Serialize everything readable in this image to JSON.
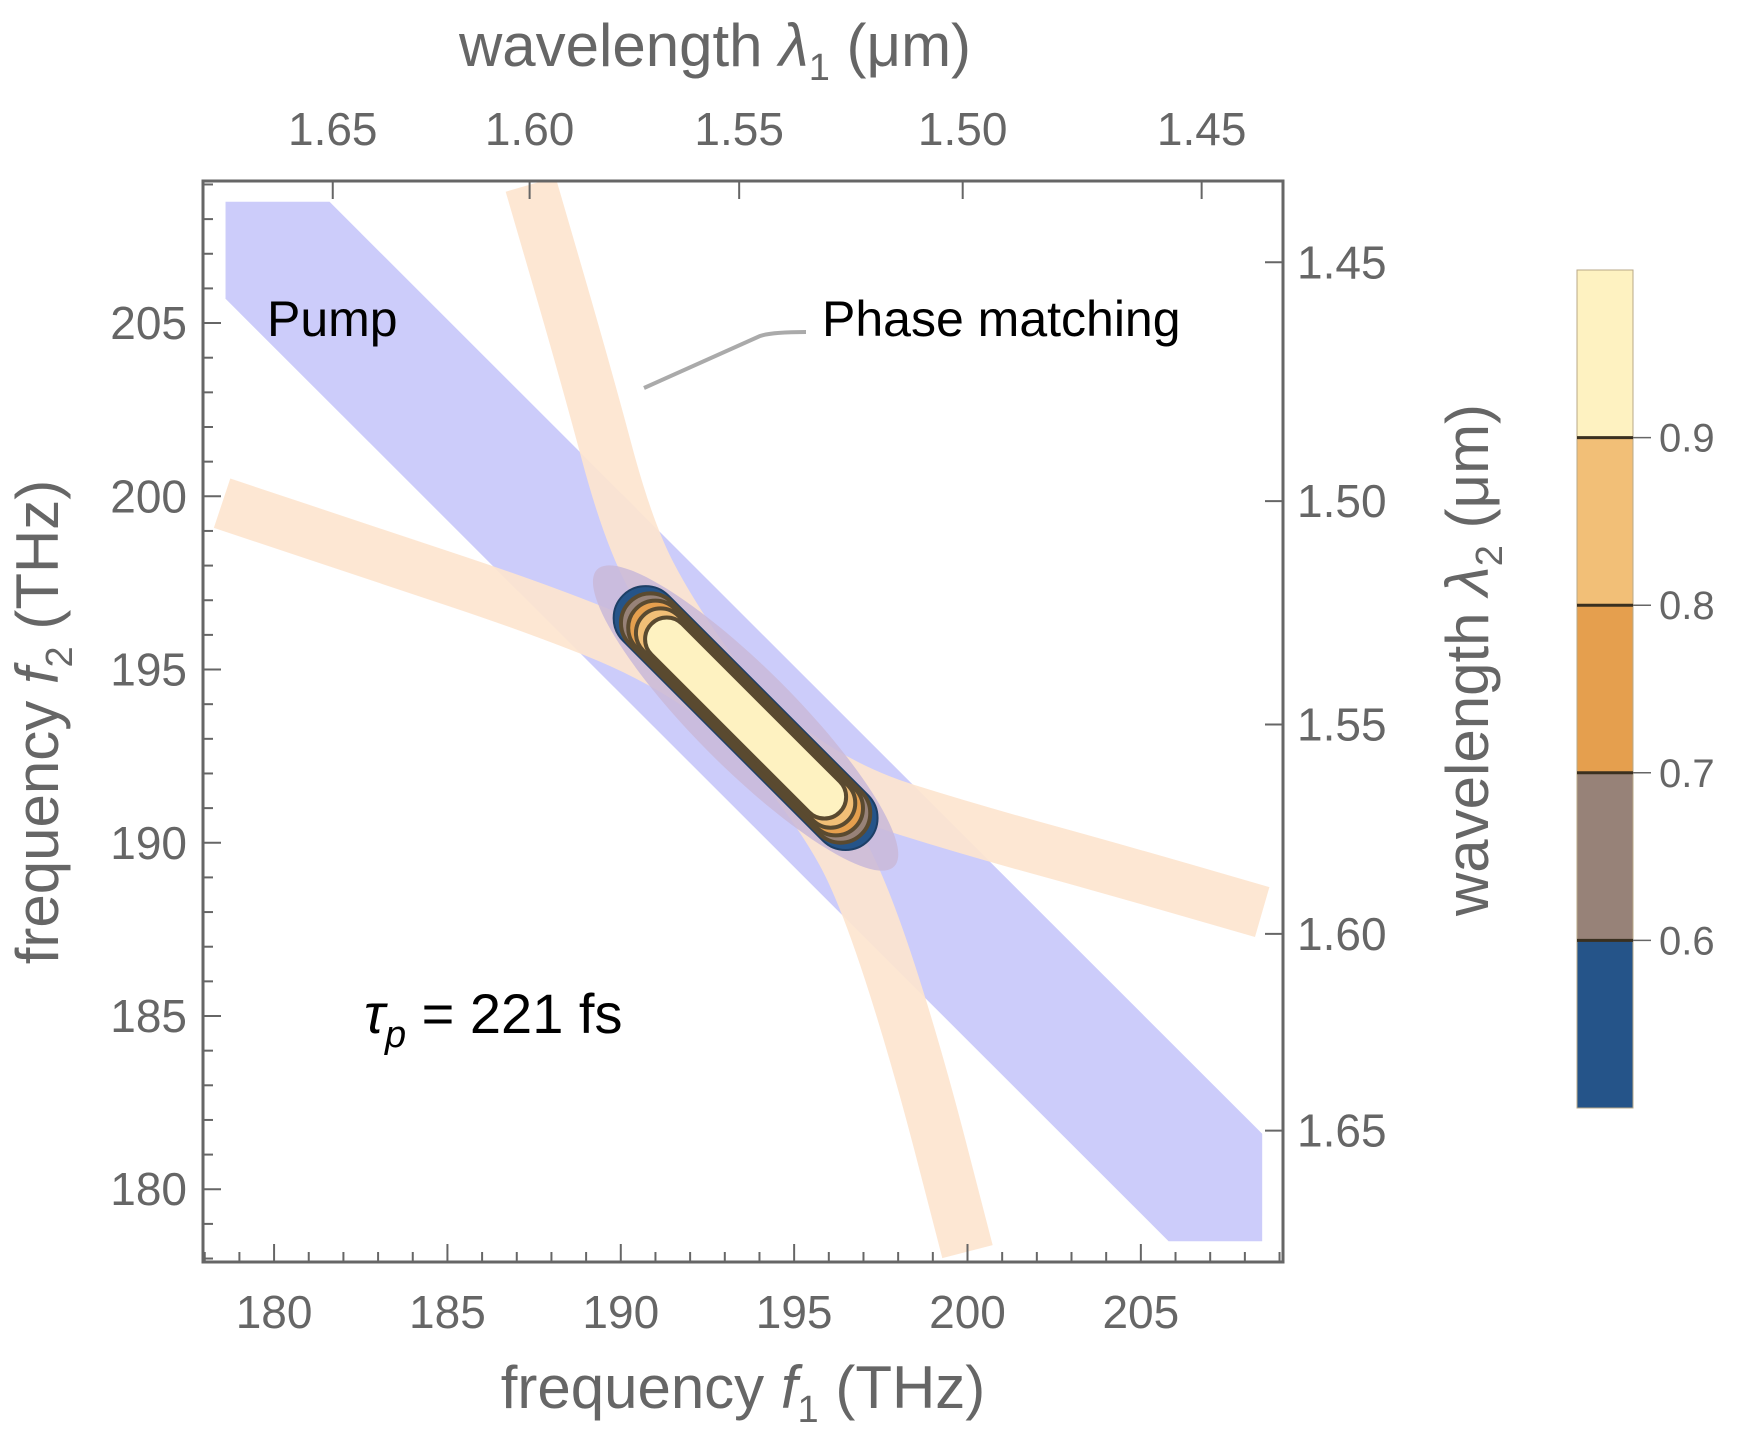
{
  "chart_data": {
    "type": "heatmap",
    "subtype": "contour",
    "title": "",
    "xlabel": "frequency f1 (THz)",
    "xlabel_parts": {
      "main": "frequency ",
      "var": "f",
      "sub": "1",
      "unit": " (THz)"
    },
    "ylabel": "frequency f2 (THz)",
    "ylabel_parts": {
      "main": "frequency  ",
      "var": "f",
      "sub": "2",
      "unit": " (THz)"
    },
    "top_label": "wavelength λ1 (μm)",
    "top_label_parts": {
      "main": "wavelength ",
      "var": "λ",
      "sub": "1",
      "unit": " (μm)",
      "unit_var": "μ"
    },
    "right_label": "wavelength λ2 (μm)",
    "right_label_parts": {
      "main": "wavelength  ",
      "var": "λ",
      "sub": "2",
      "unit": " (μm)"
    },
    "xlim": [
      177.95,
      209.1
    ],
    "ylim": [
      177.9,
      209.1
    ],
    "x_ticks": [
      180,
      185,
      190,
      195,
      200,
      205
    ],
    "x_tick_labels": [
      "180",
      "185",
      "190",
      "195",
      "200",
      "205"
    ],
    "y_ticks": [
      180,
      185,
      190,
      195,
      200,
      205
    ],
    "y_tick_labels": [
      "180",
      "185",
      "190",
      "195",
      "200",
      "205"
    ],
    "top_ticks_um": [
      1.65,
      1.6,
      1.55,
      1.5,
      1.45
    ],
    "top_tick_labels": [
      "1.65",
      "1.60",
      "1.55",
      "1.50",
      "1.45"
    ],
    "right_ticks_um": [
      1.45,
      1.5,
      1.55,
      1.6,
      1.65
    ],
    "right_tick_labels": [
      "1.45",
      "1.50",
      "1.55",
      "1.60",
      "1.65"
    ],
    "minor_tick_step": 1,
    "pump_band": {
      "label": "Pump",
      "color": "#ccccfa",
      "center_sum_THz": 387.2,
      "half_width_THz": 2.9,
      "x_extent": [
        178.6,
        208.5
      ]
    },
    "phase_matching": {
      "label": "Phase matching",
      "color": "#fde5cf",
      "center": [
        193.6,
        193.6
      ],
      "branch_a": [
        [
          187.4,
          209.0
        ],
        [
          189.0,
          203.5
        ],
        [
          190.2,
          199.0
        ],
        [
          191.5,
          196.5
        ],
        [
          193.6,
          193.6
        ],
        [
          195.8,
          190.8
        ],
        [
          197.0,
          188.6
        ],
        [
          198.5,
          184.0
        ],
        [
          200.0,
          178.2
        ]
      ],
      "branch_b": [
        [
          178.5,
          199.8
        ],
        [
          183.0,
          198.3
        ],
        [
          187.5,
          196.8
        ],
        [
          191.0,
          195.4
        ],
        [
          193.6,
          193.6
        ],
        [
          196.5,
          191.5
        ],
        [
          200.0,
          190.4
        ],
        [
          204.0,
          189.3
        ],
        [
          208.5,
          188.0
        ]
      ],
      "half_width_THz": 0.75
    },
    "annotation_leader_color": "#aaaaaa",
    "joint_spectrum": {
      "center": [
        193.6,
        193.6
      ],
      "major_axis_dir": "anti-diagonal",
      "levels": [
        0.5,
        0.6,
        0.7,
        0.8,
        0.9
      ],
      "level_colors": [
        "#255489",
        "#978278",
        "#e59f4e",
        "#f2bf77",
        "#fef2c1"
      ],
      "extent_THz": {
        "semi_major": 5.0,
        "semi_minor": 0.75
      }
    },
    "pulse_duration_label": {
      "symbol": "τ",
      "sub": "p",
      "text": " = 221 fs"
    },
    "colorbar": {
      "ticks": [
        0.6,
        0.7,
        0.8,
        0.9
      ],
      "tick_labels": [
        "0.6",
        "0.7",
        "0.8",
        "0.9"
      ],
      "range": [
        0.5,
        1.0
      ],
      "bands": [
        {
          "from": 0.5,
          "to": 0.6,
          "color": "#255489"
        },
        {
          "from": 0.6,
          "to": 0.7,
          "color": "#978278"
        },
        {
          "from": 0.7,
          "to": 0.8,
          "color": "#e59f4e"
        },
        {
          "from": 0.8,
          "to": 0.9,
          "color": "#f2bf77"
        },
        {
          "from": 0.9,
          "to": 1.0,
          "color": "#fef2c1"
        }
      ],
      "placement": "right"
    },
    "grid": false
  },
  "colors": {
    "axis": "#666666",
    "contour_line": "#5a4a30"
  }
}
